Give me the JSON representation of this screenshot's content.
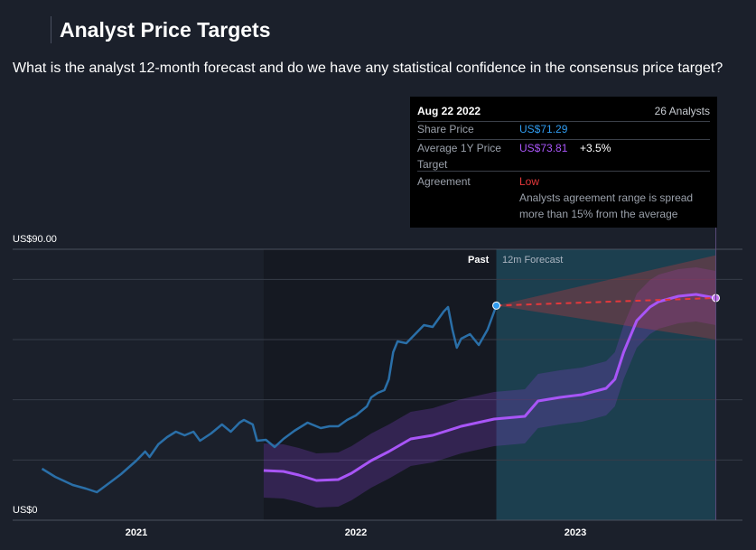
{
  "header": {
    "title": "Analyst Price Targets",
    "question": "What is the analyst 12-month forecast and do we have any statistical confidence in the consensus price target?"
  },
  "tooltip": {
    "date": "Aug 22 2022",
    "analysts": "26 Analysts",
    "share_price_label": "Share Price",
    "share_price": "US$71.29",
    "target_label_1": "Average 1Y Price",
    "target_label_2": "Target",
    "target": "US$73.81",
    "target_change": "+3.5%",
    "agreement_label": "Agreement",
    "agreement": "Low",
    "agreement_note_1": "Analysts agreement range is spread",
    "agreement_note_2": "more than 15% from the average"
  },
  "colors": {
    "price": "#2a6fa8",
    "target": "#a855f7",
    "low": "#e5383b",
    "share_blue": "#2f9bef"
  },
  "chart_data": {
    "type": "line",
    "ylabel_top": "US$90.00",
    "ylabel_bottom": "US$0",
    "ylim": [
      0,
      90
    ],
    "x_ticks": [
      "2021",
      "2022",
      "2023"
    ],
    "past_label": "Past",
    "forecast_label": "12m Forecast",
    "split_date": 2022.64,
    "forecast_end": 2023.64,
    "share_price": [
      [
        2020.57,
        17.1
      ],
      [
        2020.63,
        14.4
      ],
      [
        2020.71,
        11.7
      ],
      [
        2020.77,
        10.5
      ],
      [
        2020.82,
        9.3
      ],
      [
        2020.87,
        12.0
      ],
      [
        2020.93,
        15.3
      ],
      [
        2021.0,
        19.8
      ],
      [
        2021.04,
        22.8
      ],
      [
        2021.06,
        21.0
      ],
      [
        2021.1,
        25.2
      ],
      [
        2021.14,
        27.6
      ],
      [
        2021.18,
        29.4
      ],
      [
        2021.22,
        28.2
      ],
      [
        2021.26,
        29.4
      ],
      [
        2021.29,
        26.4
      ],
      [
        2021.34,
        28.8
      ],
      [
        2021.39,
        31.8
      ],
      [
        2021.43,
        29.4
      ],
      [
        2021.47,
        32.4
      ],
      [
        2021.49,
        33.3
      ],
      [
        2021.53,
        31.8
      ],
      [
        2021.55,
        26.4
      ],
      [
        2021.59,
        26.7
      ],
      [
        2021.63,
        24.3
      ],
      [
        2021.67,
        27.0
      ],
      [
        2021.72,
        29.7
      ],
      [
        2021.78,
        32.4
      ],
      [
        2021.84,
        30.6
      ],
      [
        2021.88,
        31.2
      ],
      [
        2021.92,
        31.2
      ],
      [
        2021.96,
        33.3
      ],
      [
        2022.0,
        34.8
      ],
      [
        2022.05,
        37.8
      ],
      [
        2022.07,
        40.8
      ],
      [
        2022.1,
        42.3
      ],
      [
        2022.13,
        43.2
      ],
      [
        2022.15,
        46.8
      ],
      [
        2022.17,
        55.8
      ],
      [
        2022.19,
        59.4
      ],
      [
        2022.23,
        58.8
      ],
      [
        2022.27,
        61.8
      ],
      [
        2022.31,
        64.8
      ],
      [
        2022.35,
        64.2
      ],
      [
        2022.4,
        69.3
      ],
      [
        2022.42,
        70.8
      ],
      [
        2022.44,
        63.3
      ],
      [
        2022.46,
        57.3
      ],
      [
        2022.48,
        60.3
      ],
      [
        2022.52,
        61.8
      ],
      [
        2022.56,
        58.2
      ],
      [
        2022.6,
        63.3
      ],
      [
        2022.64,
        71.29
      ]
    ],
    "avg_target": [
      [
        2021.58,
        16.5
      ],
      [
        2021.67,
        16.2
      ],
      [
        2021.74,
        15.0
      ],
      [
        2021.82,
        13.2
      ],
      [
        2021.92,
        13.5
      ],
      [
        2021.98,
        15.6
      ],
      [
        2022.07,
        19.8
      ],
      [
        2022.15,
        22.8
      ],
      [
        2022.25,
        27.0
      ],
      [
        2022.35,
        28.2
      ],
      [
        2022.48,
        31.2
      ],
      [
        2022.63,
        33.6
      ],
      [
        2022.77,
        34.5
      ],
      [
        2022.83,
        39.6
      ],
      [
        2022.93,
        40.8
      ],
      [
        2023.03,
        41.7
      ],
      [
        2023.14,
        43.8
      ],
      [
        2023.18,
        46.8
      ],
      [
        2023.22,
        55.8
      ],
      [
        2023.28,
        66.3
      ],
      [
        2023.34,
        70.8
      ],
      [
        2023.38,
        72.6
      ],
      [
        2023.47,
        74.4
      ],
      [
        2023.55,
        75.0
      ],
      [
        2023.64,
        73.81
      ]
    ],
    "target_band": 9,
    "forecast_cone": {
      "start": 71.29,
      "end": 73.81,
      "high": 88,
      "low": 60
    }
  }
}
